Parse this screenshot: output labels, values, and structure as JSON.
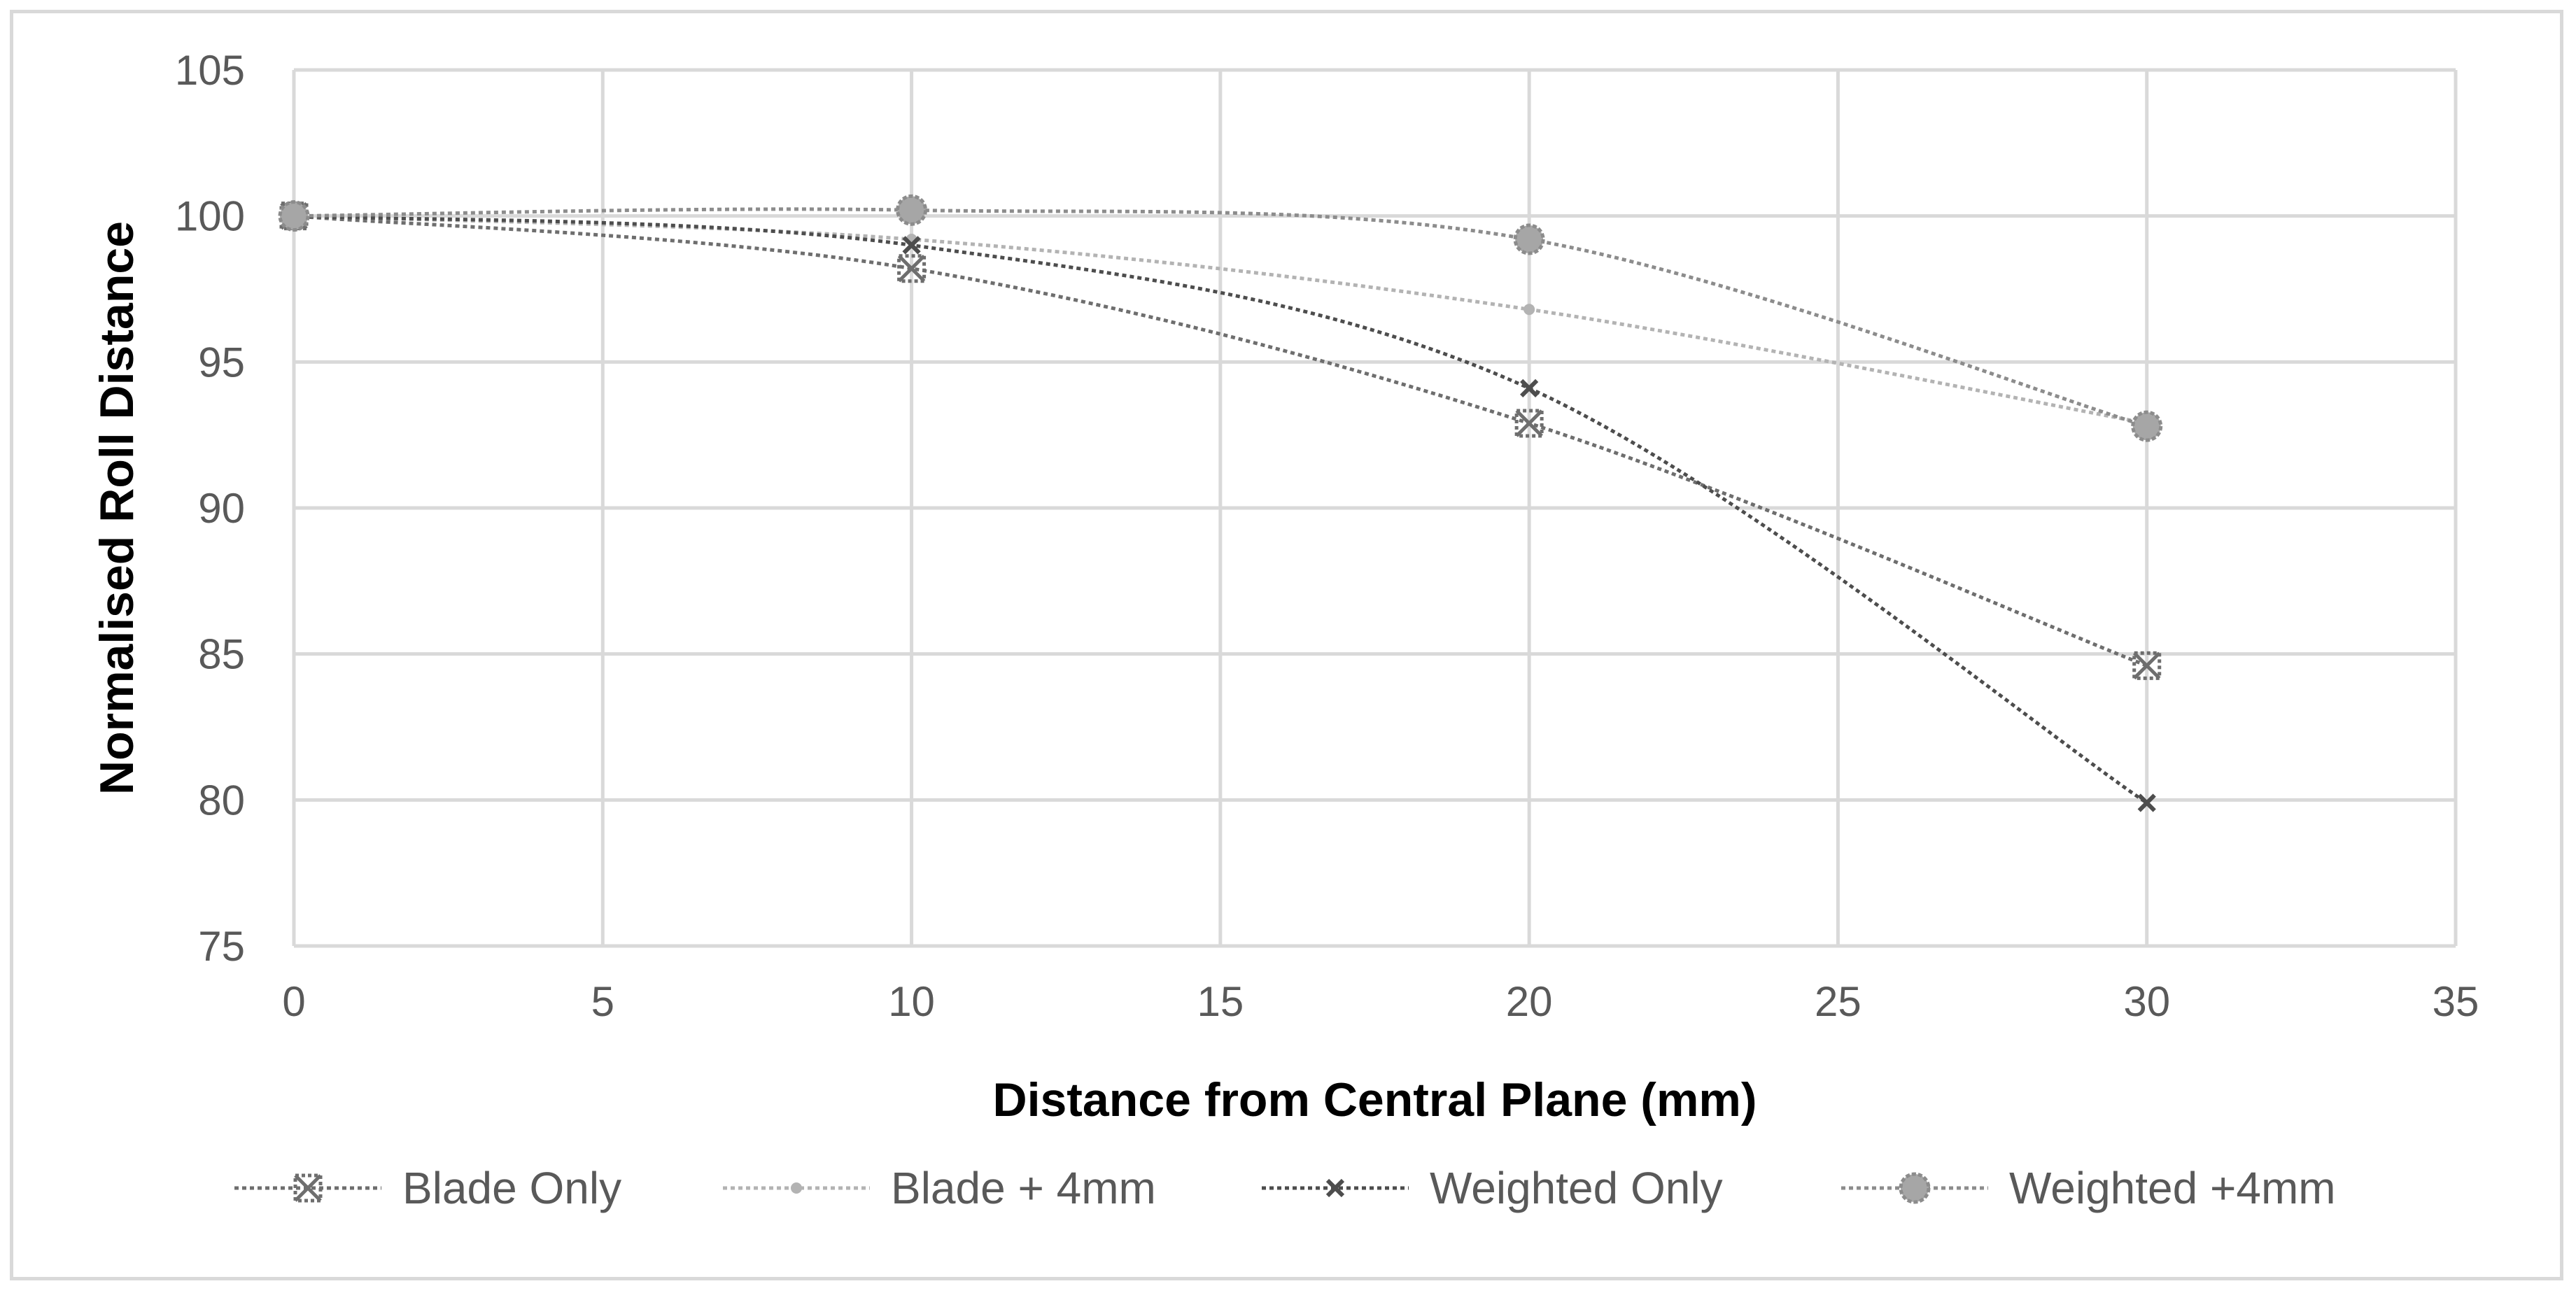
{
  "chart_data": {
    "type": "scatter",
    "title": "",
    "xlabel": "Distance from Central Plane (mm)",
    "ylabel": "Normalised Roll Distance",
    "xlim": [
      0,
      35
    ],
    "ylim": [
      75,
      105
    ],
    "xticks": [
      0,
      5,
      10,
      15,
      20,
      25,
      30,
      35
    ],
    "yticks": [
      75,
      80,
      85,
      90,
      95,
      100,
      105
    ],
    "grid": true,
    "legend_position": "bottom",
    "series": [
      {
        "name": "Blade Only",
        "color": "#6e6e6e",
        "marker": "x-square",
        "points": [
          [
            0,
            100
          ],
          [
            10,
            98.2
          ],
          [
            20,
            92.9
          ],
          [
            30,
            84.6
          ]
        ]
      },
      {
        "name": "Blade + 4mm",
        "color": "#b3b3b3",
        "marker": "dot",
        "points": [
          [
            0,
            100
          ],
          [
            10,
            99.2
          ],
          [
            20,
            96.8
          ],
          [
            30,
            92.9
          ]
        ]
      },
      {
        "name": "Weighted Only",
        "color": "#4d4d4d",
        "marker": "x",
        "points": [
          [
            0,
            100
          ],
          [
            10,
            99.0
          ],
          [
            20,
            94.1
          ],
          [
            30,
            79.9
          ]
        ]
      },
      {
        "name": "Weighted +4mm",
        "color": "#8c8c8c",
        "marker": "circle",
        "points": [
          [
            0,
            100
          ],
          [
            10,
            100.2
          ],
          [
            20,
            99.2
          ],
          [
            30,
            92.8
          ]
        ]
      }
    ]
  }
}
